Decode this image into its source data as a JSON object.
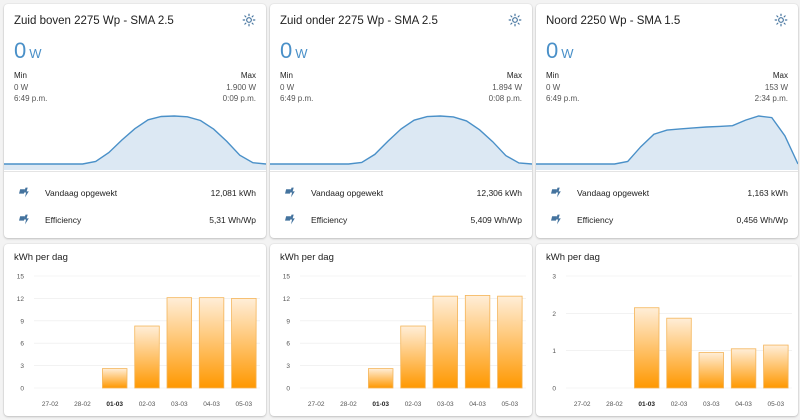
{
  "colors": {
    "accent": "#4a90c8",
    "bar_fill_top": "#ffeed8",
    "bar_fill_bottom": "#ff9800",
    "bar_stroke": "#f4b55a",
    "curve_line": "#4a90c8",
    "curve_fill": "#dce8f3"
  },
  "sensors": [
    {
      "title": "Zuid boven 2275 Wp - SMA 2.5",
      "value": "0",
      "unit": "W",
      "min_label": "Min",
      "min_value": "0 W",
      "min_time": "6:49 p.m.",
      "max_label": "Max",
      "max_value": "1.900 W",
      "max_time": "0:09 p.m.",
      "rows": [
        {
          "name": "Vandaag opgewekt",
          "value": "12,081 kWh"
        },
        {
          "name": "Efficiency",
          "value": "5,31 Wh/Wp"
        }
      ]
    },
    {
      "title": "Zuid onder 2275 Wp - SMA 2.5",
      "value": "0",
      "unit": "W",
      "min_label": "Min",
      "min_value": "0 W",
      "min_time": "6:49 p.m.",
      "max_label": "Max",
      "max_value": "1.894 W",
      "max_time": "0:08 p.m.",
      "rows": [
        {
          "name": "Vandaag opgewekt",
          "value": "12,306 kWh"
        },
        {
          "name": "Efficiency",
          "value": "5,409 Wh/Wp"
        }
      ]
    },
    {
      "title": "Noord 2250 Wp - SMA 1.5",
      "value": "0",
      "unit": "W",
      "min_label": "Min",
      "min_value": "0 W",
      "min_time": "6:49 p.m.",
      "max_label": "Max",
      "max_value": "153 W",
      "max_time": "2:34 p.m.",
      "rows": [
        {
          "name": "Vandaag opgewekt",
          "value": "1,163 kWh"
        },
        {
          "name": "Efficiency",
          "value": "0,456 Wh/Wp"
        }
      ]
    }
  ],
  "chart_data": [
    {
      "type": "line",
      "title": "Zuid boven 2275 Wp - SMA 2.5",
      "xlabel": "",
      "ylabel": "W",
      "ylim": [
        0,
        1900
      ],
      "x": [
        0,
        1,
        2,
        3,
        4,
        5,
        6,
        7,
        8,
        9,
        10,
        11,
        12,
        13,
        14,
        15,
        16,
        17,
        18,
        19,
        20
      ],
      "y": [
        0,
        0,
        0,
        0,
        0,
        0,
        0,
        100,
        450,
        950,
        1400,
        1750,
        1880,
        1900,
        1870,
        1720,
        1380,
        900,
        350,
        50,
        0
      ]
    },
    {
      "type": "line",
      "title": "Zuid onder 2275 Wp - SMA 2.5",
      "xlabel": "",
      "ylabel": "W",
      "ylim": [
        0,
        1894
      ],
      "x": [
        0,
        1,
        2,
        3,
        4,
        5,
        6,
        7,
        8,
        9,
        10,
        11,
        12,
        13,
        14,
        15,
        16,
        17,
        18,
        19,
        20
      ],
      "y": [
        0,
        0,
        0,
        0,
        0,
        0,
        0,
        60,
        380,
        900,
        1380,
        1730,
        1870,
        1894,
        1860,
        1700,
        1350,
        880,
        330,
        40,
        0
      ]
    },
    {
      "type": "line",
      "title": "Noord 2250 Wp - SMA 1.5",
      "xlabel": "",
      "ylabel": "W",
      "ylim": [
        0,
        153
      ],
      "x": [
        0,
        1,
        2,
        3,
        4,
        5,
        6,
        7,
        8,
        9,
        10,
        11,
        12,
        13,
        14,
        15,
        16,
        17,
        18,
        19,
        20
      ],
      "y": [
        0,
        0,
        0,
        0,
        0,
        0,
        0,
        8,
        55,
        95,
        108,
        112,
        115,
        118,
        120,
        122,
        140,
        153,
        148,
        90,
        0
      ]
    },
    {
      "type": "bar",
      "title": "kWh per dag",
      "xlabel": "",
      "ylabel": "kWh",
      "ylim": [
        0,
        15
      ],
      "categories": [
        "27-02",
        "28-02",
        "01-03",
        "02-03",
        "03-03",
        "04-03",
        "05-03"
      ],
      "bold_category": "01-03",
      "yticks": [
        0,
        3,
        6,
        9,
        12,
        15
      ],
      "values": [
        0,
        0,
        2.6,
        8.3,
        12.1,
        12.1,
        12.0
      ]
    },
    {
      "type": "bar",
      "title": "kWh per dag",
      "xlabel": "",
      "ylabel": "kWh",
      "ylim": [
        0,
        15
      ],
      "categories": [
        "27-02",
        "28-02",
        "01-03",
        "02-03",
        "03-03",
        "04-03",
        "05-03"
      ],
      "bold_category": "01-03",
      "yticks": [
        0,
        3,
        6,
        9,
        12,
        15
      ],
      "values": [
        0,
        0,
        2.6,
        8.3,
        12.3,
        12.4,
        12.3
      ]
    },
    {
      "type": "bar",
      "title": "kWh per dag",
      "xlabel": "",
      "ylabel": "kWh",
      "ylim": [
        0,
        3
      ],
      "categories": [
        "27-02",
        "28-02",
        "01-03",
        "02-03",
        "03-03",
        "04-03",
        "05-03"
      ],
      "bold_category": "01-03",
      "yticks": [
        0,
        1,
        2,
        3
      ],
      "values": [
        0,
        0,
        2.15,
        1.87,
        0.95,
        1.05,
        1.15
      ]
    }
  ]
}
